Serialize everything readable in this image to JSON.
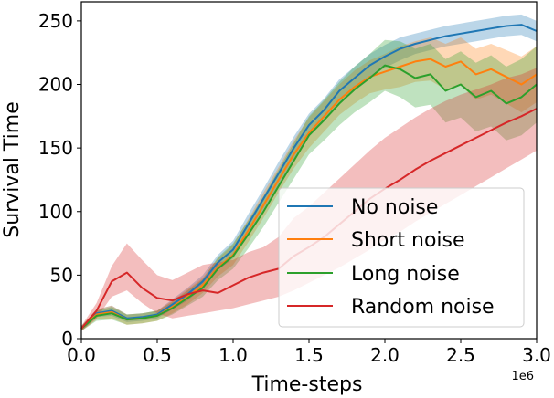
{
  "chart_data": {
    "type": "line",
    "xlabel": "Time-steps",
    "ylabel": "Survival Time",
    "x_offset_label": "1e6",
    "xlim": [
      0.0,
      3.0
    ],
    "ylim": [
      0,
      265
    ],
    "xticks": [
      "0.0",
      "0.5",
      "1.0",
      "1.5",
      "2.0",
      "2.5",
      "3.0"
    ],
    "yticks": [
      "0",
      "50",
      "100",
      "150",
      "200",
      "250"
    ],
    "legend_position": "lower-right",
    "x": [
      0.0,
      0.1,
      0.2,
      0.3,
      0.4,
      0.5,
      0.6,
      0.7,
      0.8,
      0.9,
      1.0,
      1.1,
      1.2,
      1.3,
      1.4,
      1.5,
      1.6,
      1.7,
      1.8,
      1.9,
      2.0,
      2.1,
      2.2,
      2.3,
      2.4,
      2.5,
      2.6,
      2.7,
      2.8,
      2.9,
      3.0
    ],
    "series": [
      {
        "name": "No noise",
        "color": "#1f77b4",
        "values": [
          8,
          20,
          22,
          16,
          17,
          19,
          27,
          35,
          45,
          60,
          70,
          90,
          110,
          130,
          150,
          168,
          180,
          195,
          205,
          215,
          222,
          228,
          232,
          235,
          238,
          240,
          242,
          244,
          246,
          247,
          242
        ],
        "lower": [
          6,
          17,
          18,
          13,
          14,
          16,
          23,
          30,
          40,
          54,
          63,
          82,
          102,
          121,
          141,
          159,
          171,
          186,
          196,
          206,
          213,
          219,
          224,
          227,
          230,
          232,
          234,
          236,
          238,
          239,
          234
        ],
        "upper": [
          10,
          23,
          26,
          19,
          20,
          22,
          31,
          40,
          50,
          66,
          77,
          98,
          118,
          139,
          159,
          177,
          189,
          204,
          214,
          224,
          231,
          237,
          240,
          243,
          246,
          248,
          250,
          252,
          254,
          255,
          250
        ]
      },
      {
        "name": "Short noise",
        "color": "#ff7f0e",
        "values": [
          8,
          19,
          21,
          15,
          16,
          18,
          25,
          33,
          42,
          56,
          66,
          85,
          105,
          125,
          145,
          162,
          175,
          188,
          198,
          206,
          210,
          214,
          218,
          220,
          214,
          218,
          208,
          212,
          206,
          200,
          208
        ],
        "lower": [
          6,
          15,
          16,
          11,
          12,
          14,
          20,
          27,
          36,
          49,
          58,
          76,
          95,
          115,
          134,
          150,
          163,
          176,
          185,
          193,
          196,
          198,
          202,
          203,
          196,
          199,
          188,
          192,
          185,
          178,
          186
        ],
        "upper": [
          10,
          23,
          26,
          19,
          20,
          22,
          30,
          39,
          48,
          63,
          74,
          94,
          115,
          135,
          156,
          174,
          187,
          200,
          211,
          219,
          224,
          230,
          234,
          237,
          232,
          237,
          228,
          232,
          227,
          222,
          230
        ]
      },
      {
        "name": "Long noise",
        "color": "#2ca02c",
        "values": [
          8,
          18,
          20,
          15,
          16,
          18,
          24,
          32,
          40,
          55,
          65,
          82,
          100,
          120,
          140,
          160,
          172,
          185,
          196,
          205,
          215,
          212,
          205,
          208,
          195,
          200,
          190,
          195,
          185,
          190,
          200
        ],
        "lower": [
          6,
          14,
          15,
          11,
          12,
          14,
          19,
          26,
          33,
          46,
          55,
          71,
          88,
          107,
          126,
          145,
          156,
          168,
          178,
          186,
          195,
          190,
          182,
          184,
          170,
          174,
          163,
          167,
          156,
          160,
          170
        ],
        "upper": [
          10,
          22,
          25,
          19,
          20,
          22,
          29,
          38,
          47,
          64,
          75,
          93,
          112,
          133,
          154,
          175,
          188,
          202,
          214,
          224,
          235,
          234,
          228,
          232,
          220,
          226,
          217,
          223,
          214,
          220,
          230
        ]
      },
      {
        "name": "Random noise",
        "color": "#d62728",
        "values": [
          8,
          22,
          45,
          52,
          40,
          32,
          30,
          35,
          38,
          36,
          42,
          48,
          52,
          55,
          65,
          72,
          80,
          90,
          100,
          110,
          118,
          125,
          133,
          140,
          146,
          152,
          158,
          164,
          170,
          175,
          181
        ],
        "lower": [
          6,
          16,
          33,
          38,
          28,
          20,
          16,
          18,
          20,
          22,
          24,
          27,
          30,
          33,
          38,
          44,
          50,
          56,
          63,
          70,
          78,
          84,
          92,
          99,
          106,
          113,
          120,
          127,
          134,
          141,
          148
        ],
        "upper": [
          10,
          28,
          57,
          75,
          62,
          50,
          46,
          52,
          58,
          60,
          62,
          68,
          72,
          80,
          95,
          104,
          115,
          126,
          137,
          148,
          158,
          166,
          174,
          181,
          187,
          192,
          196,
          200,
          205,
          208,
          213
        ]
      }
    ]
  }
}
